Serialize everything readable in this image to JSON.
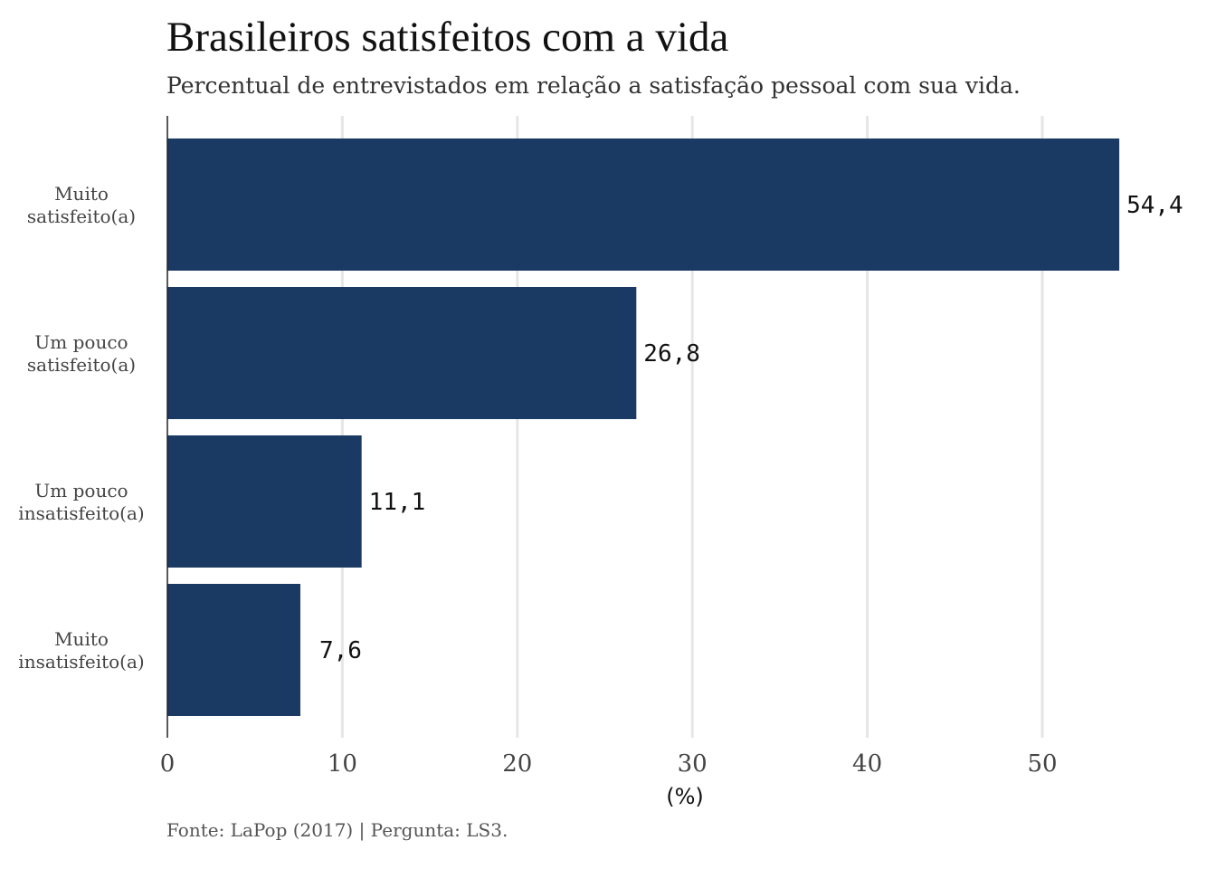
{
  "chart_data": {
    "type": "bar",
    "orientation": "horizontal",
    "title": "Brasileiros satisfeitos com a vida",
    "subtitle": "Percentual de entrevistados em relação a satisfação pessoal com sua vida.",
    "categories": [
      [
        "Muito",
        "satisfeito(a)"
      ],
      [
        "Um pouco",
        "satisfeito(a)"
      ],
      [
        "Um pouco",
        "insatisfeito(a)"
      ],
      [
        "Muito",
        "insatisfeito(a)"
      ]
    ],
    "values": [
      54.4,
      26.8,
      11.1,
      7.6
    ],
    "value_labels": [
      "54,4",
      "26,8",
      "11,1",
      "7,6"
    ],
    "xlabel": "(%)",
    "ylabel": "",
    "xlim": [
      0,
      57
    ],
    "xticks": [
      0,
      10,
      20,
      30,
      40,
      50
    ],
    "grid": "vertical",
    "legend": "none",
    "bar_color": "#1b3a63",
    "caption": "Fonte: LaPop (2017) | Pergunta: LS3."
  }
}
